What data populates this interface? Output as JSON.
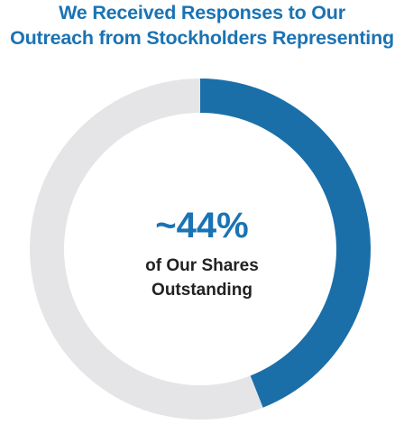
{
  "header": {
    "title_line1": "We Received Responses to Our",
    "title_line2": "Outreach from Stockholders Representing"
  },
  "chart_data": {
    "type": "pie",
    "donut": true,
    "slices": [
      {
        "label": "~44%",
        "value": 44,
        "color": "#1a6fa8"
      },
      {
        "label": "",
        "value": 56,
        "color": "#e5e5e7"
      }
    ],
    "center_value": "~44%",
    "center_label_line1": "of Our Shares",
    "center_label_line2": "Outstanding"
  }
}
